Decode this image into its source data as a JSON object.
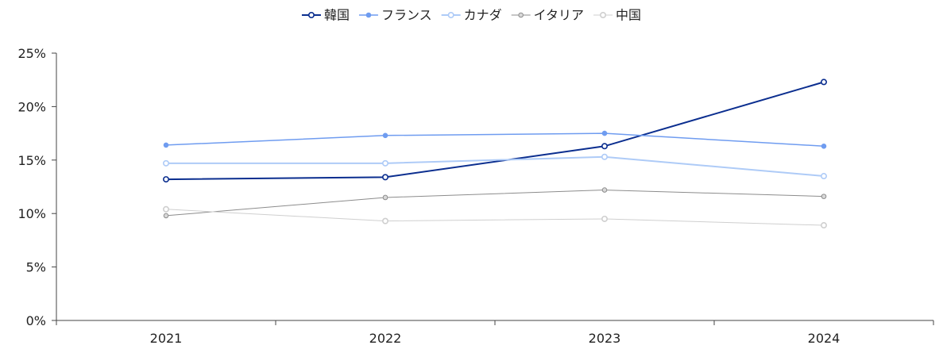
{
  "chart_data": {
    "type": "line",
    "title": "",
    "xlabel": "",
    "ylabel": "",
    "categories": [
      "2021",
      "2022",
      "2023",
      "2024"
    ],
    "ylim": [
      0,
      25
    ],
    "yticks": [
      "0%",
      "5%",
      "10%",
      "15%",
      "20%",
      "25%"
    ],
    "ytick_values": [
      0,
      5,
      10,
      15,
      20,
      25
    ],
    "grid": false,
    "legend_position": "top-center",
    "series": [
      {
        "name": "韓国",
        "values": [
          13.2,
          13.4,
          16.3,
          22.3
        ],
        "color": "#0b2e8f",
        "marker": "hollow",
        "width": 2
      },
      {
        "name": "フランス",
        "values": [
          16.4,
          17.3,
          17.5,
          16.3
        ],
        "color": "#6f9cf0",
        "marker": "filled",
        "width": 1.5
      },
      {
        "name": "カナダ",
        "values": [
          14.7,
          14.7,
          15.3,
          13.5
        ],
        "color": "#aecbf7",
        "marker": "hollow",
        "width": 2
      },
      {
        "name": "イタリア",
        "values": [
          9.8,
          11.5,
          12.2,
          11.6
        ],
        "color": "#8c8c8c",
        "marker": "filled-light",
        "width": 1
      },
      {
        "name": "中国",
        "values": [
          10.4,
          9.3,
          9.5,
          8.9
        ],
        "color": "#cfcfcf",
        "marker": "hollow",
        "width": 1
      }
    ]
  }
}
